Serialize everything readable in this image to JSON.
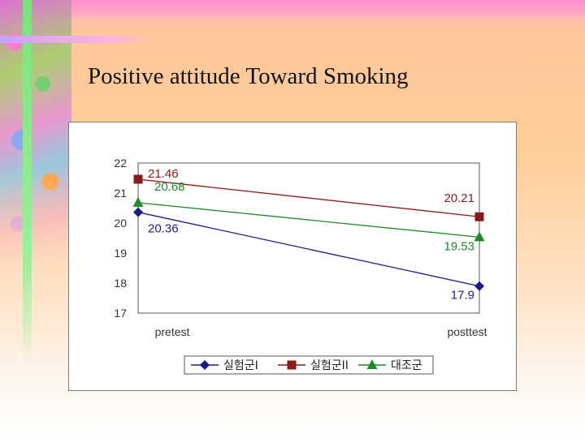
{
  "page": {
    "title": "Positive attitude Toward Smoking"
  },
  "chart_data": {
    "type": "line",
    "title": "Positive attitude Toward Smoking",
    "categories": [
      "pretest",
      "posttest"
    ],
    "series": [
      {
        "name": "실험군I",
        "values": [
          20.36,
          17.9
        ],
        "color": "#1a1a8c",
        "marker": "diamond"
      },
      {
        "name": "실험군II",
        "values": [
          21.46,
          20.21
        ],
        "color": "#8b1a1a",
        "marker": "square"
      },
      {
        "name": "대조군",
        "values": [
          20.68,
          19.53
        ],
        "color": "#1f8a2a",
        "marker": "triangle"
      }
    ],
    "data_labels": [
      {
        "series": 0,
        "index": 0,
        "text": "20.36"
      },
      {
        "series": 0,
        "index": 1,
        "text": "17.9"
      },
      {
        "series": 1,
        "index": 0,
        "text": "21.46"
      },
      {
        "series": 1,
        "index": 1,
        "text": "20.21"
      },
      {
        "series": 2,
        "index": 0,
        "text": "20.68"
      },
      {
        "series": 2,
        "index": 1,
        "text": "19.53"
      }
    ],
    "ylim": [
      17,
      22
    ],
    "yticks": [
      "17",
      "18",
      "19",
      "20",
      "21",
      "22"
    ],
    "xlabel": "",
    "ylabel": "",
    "grid": false,
    "legend": "bottom"
  }
}
